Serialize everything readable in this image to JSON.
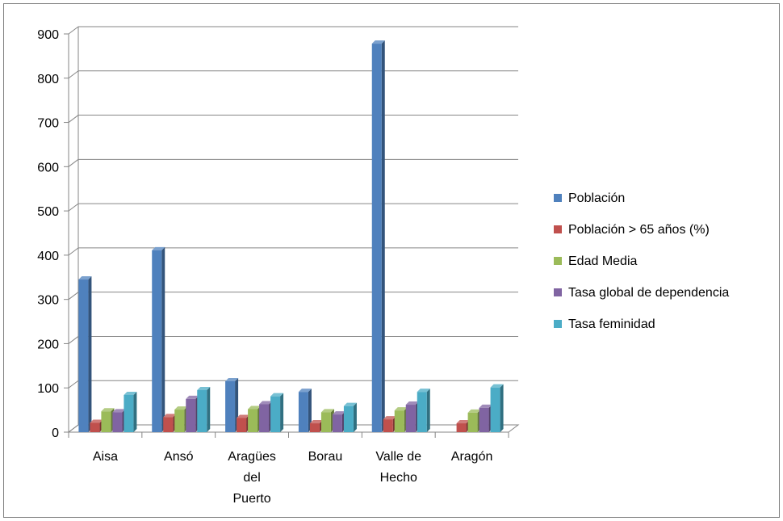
{
  "chart_data": {
    "type": "bar",
    "categories": [
      "Aisa",
      "Ansó",
      "Aragües del Puerto",
      "Borau",
      "Valle de Hecho",
      "Aragón"
    ],
    "series": [
      {
        "name": "Población",
        "color": "#4F81BD",
        "values": [
          345,
          411,
          115,
          91,
          878,
          null
        ]
      },
      {
        "name": "Población > 65 años (%)",
        "color": "#C0504D",
        "values": [
          21,
          34,
          32,
          20,
          29,
          20
        ]
      },
      {
        "name": "Edad Media",
        "color": "#9BBB59",
        "values": [
          47,
          51,
          52,
          45,
          49,
          44
        ]
      },
      {
        "name": "Tasa global de dependencia",
        "color": "#8064A2",
        "values": [
          45,
          75,
          63,
          40,
          62,
          55
        ]
      },
      {
        "name": "Tasa feminidad",
        "color": "#4BACC6",
        "values": [
          84,
          95,
          81,
          59,
          91,
          101
        ]
      }
    ],
    "yticks": [
      "0",
      "100",
      "200",
      "300",
      "400",
      "500",
      "600",
      "700",
      "800",
      "900"
    ],
    "ylim": [
      0,
      900
    ],
    "grid": true,
    "legend": "right"
  }
}
